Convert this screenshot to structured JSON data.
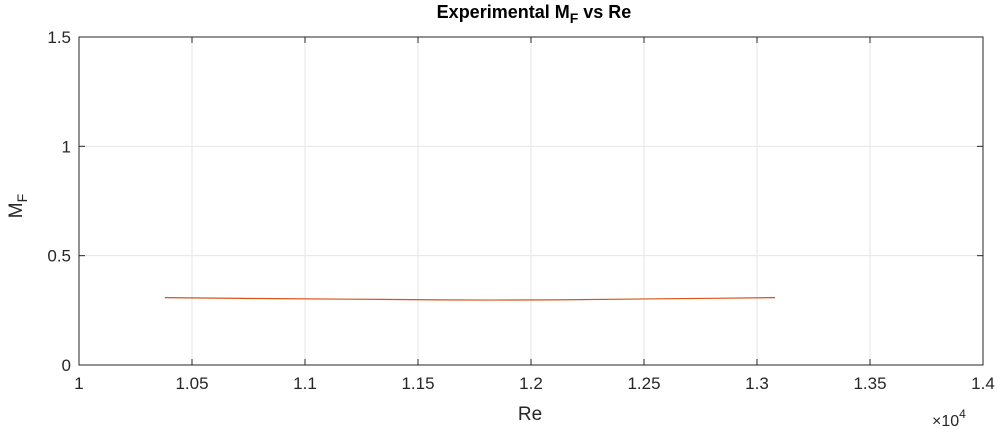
{
  "chart_data": {
    "type": "line",
    "title": "Experimental M",
    "title_sub": "F",
    "title_suffix": " vs Re",
    "xlabel": "Re",
    "ylabel": "M",
    "ylabel_sub": "F",
    "x_multiplier_label": "×10",
    "x_multiplier_exponent": "4",
    "xlim": [
      10000,
      14000
    ],
    "ylim": [
      0,
      1.5
    ],
    "x_ticks": [
      10000,
      10500,
      11000,
      11500,
      12000,
      12500,
      13000,
      13500,
      14000
    ],
    "x_tick_labels": [
      "1",
      "1.05",
      "1.1",
      "1.15",
      "1.2",
      "1.25",
      "1.3",
      "1.35",
      "1.4"
    ],
    "y_ticks": [
      0,
      0.5,
      1,
      1.5
    ],
    "y_tick_labels": [
      "0",
      "0.5",
      "1",
      "1.5"
    ],
    "grid": true,
    "series": [
      {
        "color": "#D95319",
        "x": [
          10380,
          10800,
          11200,
          11600,
          11820,
          12100,
          12500,
          12800,
          13080
        ],
        "y": [
          0.308,
          0.304,
          0.301,
          0.298,
          0.297,
          0.298,
          0.302,
          0.305,
          0.308
        ]
      }
    ]
  }
}
